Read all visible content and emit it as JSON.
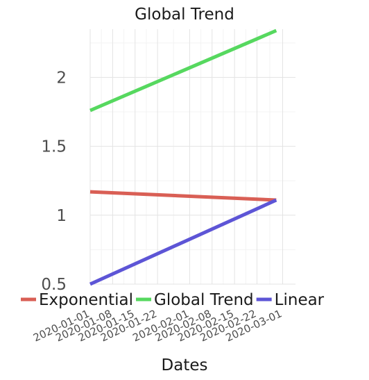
{
  "chart_data": {
    "type": "line",
    "title": "Global Trend",
    "xlabel": "Dates",
    "ylabel": "",
    "ylim": [
      0.5,
      2.35
    ],
    "y_ticks": [
      0.5,
      1,
      1.5,
      2
    ],
    "y_tick_labels": [
      "0.5",
      "1",
      "1.5",
      "2"
    ],
    "x_tick_labels": [
      "2020-01-01",
      "2020-01-08",
      "2020-01-15",
      "2020-01-22",
      "2020-02-01",
      "2020-02-08",
      "2020-02-15",
      "2020-02-22",
      "2020-03-01"
    ],
    "x_range": [
      "2020-01-01",
      "2020-03-05"
    ],
    "grid": true,
    "legend_position": "bottom",
    "series": [
      {
        "name": "Exponential",
        "color": "#d95f55",
        "x": [
          "2020-01-01",
          "2020-02-28"
        ],
        "y": [
          1.17,
          1.11
        ]
      },
      {
        "name": "Global Trend",
        "color": "#56d85f",
        "x": [
          "2020-01-01",
          "2020-02-28"
        ],
        "y": [
          1.76,
          2.34
        ]
      },
      {
        "name": "Linear",
        "color": "#5d55d6",
        "x": [
          "2020-01-01",
          "2020-02-28"
        ],
        "y": [
          0.5,
          1.11
        ]
      }
    ]
  }
}
